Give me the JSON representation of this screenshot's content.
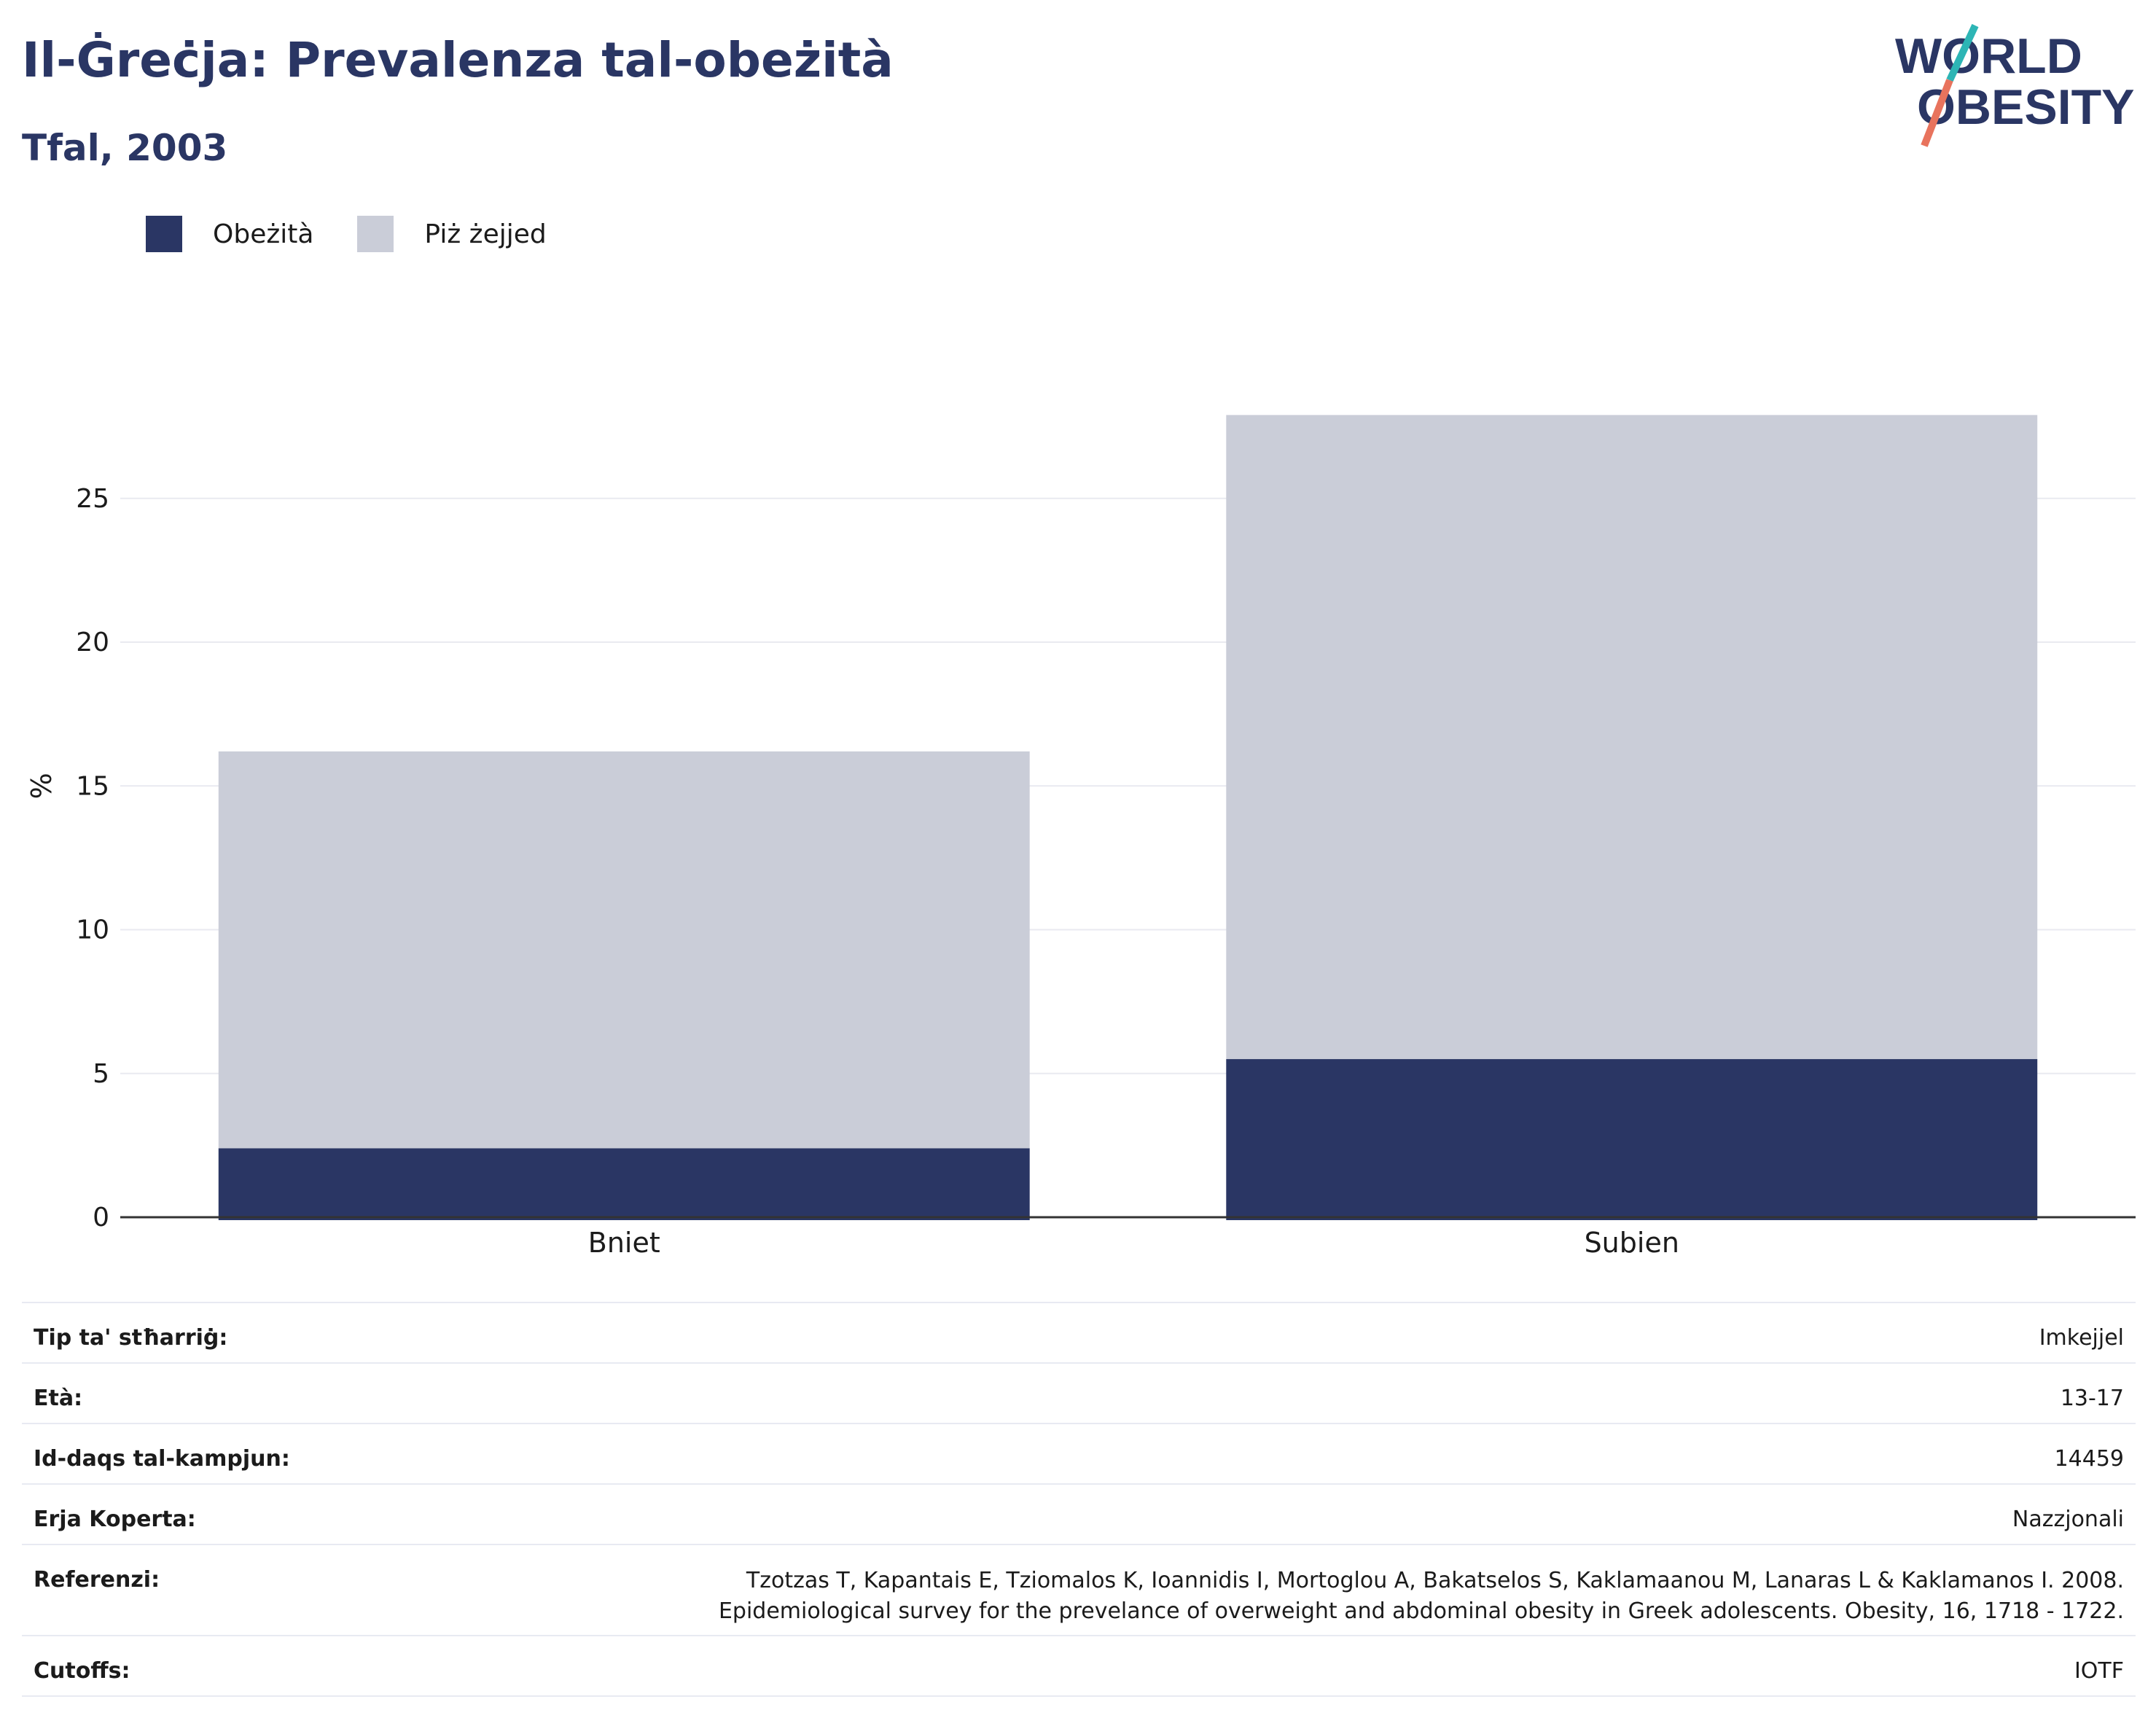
{
  "header": {
    "title": "Il-Ġreċja: Prevalenza tal-obeżità",
    "subtitle": "Tfal, 2003"
  },
  "logo": {
    "line1": "WORLD",
    "line2": "OBESITY"
  },
  "colors": {
    "obese": "#2a3664",
    "overweight": "#cacdd8",
    "text": "#2a3664",
    "accent_teal": "#2db5b5",
    "accent_coral": "#e8735d"
  },
  "legend": [
    {
      "label": "Obeżità",
      "color": "#2a3664"
    },
    {
      "label": "Piż żejjed",
      "color": "#cacdd8"
    }
  ],
  "chart_data": {
    "type": "bar",
    "stacked": true,
    "categories": [
      "Bniet",
      "Subien"
    ],
    "series": [
      {
        "name": "Obeżità",
        "values": [
          2.4,
          5.5
        ]
      },
      {
        "name": "Piż żejjed",
        "values": [
          13.8,
          22.4
        ]
      }
    ],
    "totals": [
      16.2,
      27.9
    ],
    "ylabel": "%",
    "ylim": [
      0,
      29
    ],
    "yticks": [
      0,
      5,
      10,
      15,
      20,
      25
    ],
    "grid": true
  },
  "info": [
    {
      "key": "Tip ta' stħarriġ:",
      "value": "Imkejjel"
    },
    {
      "key": "Età:",
      "value": "13-17"
    },
    {
      "key": "Id-daqs tal-kampjun:",
      "value": "14459"
    },
    {
      "key": "Erja Koperta:",
      "value": "Nazzjonali"
    },
    {
      "key": "Referenzi:",
      "value_lines": [
        "Tzotzas T, Kapantais E, Tziomalos K, Ioannidis I, Mortoglou A, Bakatselos S, Kaklamaanou M, Lanaras L & Kaklamanos I. 2008.",
        "Epidemiological survey for the prevelance of overweight and abdominal obesity in Greek adolescents. Obesity, 16, 1718 - 1722."
      ]
    },
    {
      "key": "Cutoffs:",
      "value": "IOTF"
    }
  ]
}
